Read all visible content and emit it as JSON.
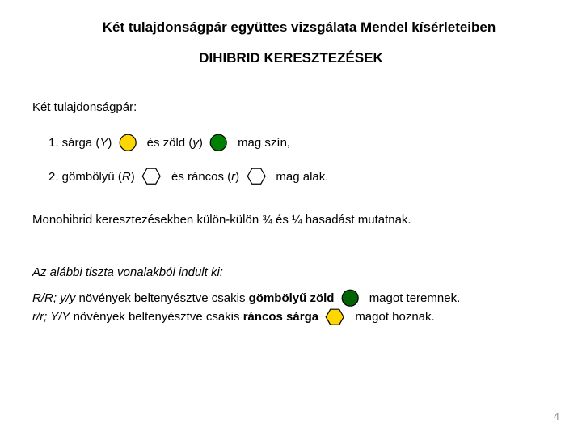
{
  "title": "Két tulajdonságpár együttes vizsgálata Mendel kísérleteiben",
  "subtitle": "DIHIBRID KERESZTEZÉSEK",
  "section_heading": "Két tulajdonságpár:",
  "trait1": {
    "prefix": "1. sárga (",
    "allele1": "Y",
    "mid1": ")  ",
    "connector": "   és zöld (",
    "allele2": "y",
    "mid2": ")  ",
    "suffix": "   mag szín,"
  },
  "trait2": {
    "prefix": "2. gömbölyű (",
    "allele1": "R",
    "mid1": ")  ",
    "connector": "   és ráncos (",
    "allele2": "r",
    "mid2": ")  ",
    "suffix": "   mag alak."
  },
  "monohybrid_text": "Monohibrid keresztezésekben külön-külön  ¾ és ¼ hasadást mutatnak.",
  "pure_lines_heading": "Az alábbi tiszta vonalakból indult ki:",
  "line1": {
    "genotype": "R/R; y/y",
    "mid": " növények beltenyésztve csakis ",
    "phenotype": "gömbölyű zöld",
    "suffix": "   magot teremnek."
  },
  "line2": {
    "genotype": "r/r; Y/Y",
    "mid": " növények beltenyésztve csakis ",
    "phenotype": "ráncos sárga",
    "suffix": "   magot hoznak."
  },
  "page_number": "4",
  "colors": {
    "yellow_fill": "#ffd700",
    "green_fill": "#008000",
    "white_fill": "#ffffff",
    "yellow_stroke": "#000000",
    "green_stroke": "#000000",
    "hex_stroke": "#000000",
    "green_dark": "#006400"
  },
  "shapes": {
    "circle_radius": 10,
    "hexagon_size": 11,
    "stroke_width": 1.2
  }
}
